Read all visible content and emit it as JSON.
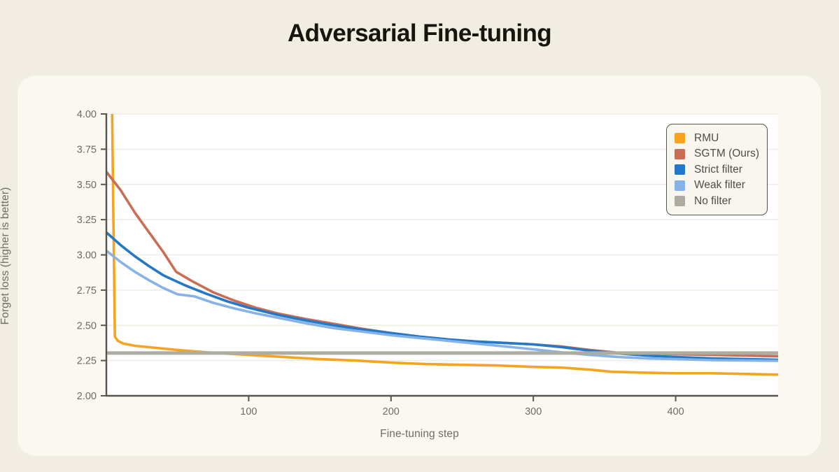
{
  "chart_data": {
    "type": "line",
    "title": "Adversarial Fine-tuning",
    "xlabel": "Fine-tuning step",
    "ylabel": "Forget loss (higher is better)",
    "xlim": [
      0,
      472
    ],
    "ylim": [
      2.0,
      4.0
    ],
    "grid": "horizontal-only",
    "legend_position": "upper-right",
    "x_ticks": [
      {
        "value": 100,
        "label": "100"
      },
      {
        "value": 200,
        "label": "200"
      },
      {
        "value": 300,
        "label": "300"
      },
      {
        "value": 400,
        "label": "400"
      }
    ],
    "y_ticks": [
      {
        "value": 2.0,
        "label": "2.00"
      },
      {
        "value": 2.25,
        "label": "2.25"
      },
      {
        "value": 2.5,
        "label": "2.50"
      },
      {
        "value": 2.75,
        "label": "2.75"
      },
      {
        "value": 3.0,
        "label": "3.00"
      },
      {
        "value": 3.25,
        "label": "3.25"
      },
      {
        "value": 3.5,
        "label": "3.50"
      },
      {
        "value": 3.75,
        "label": "3.75"
      },
      {
        "value": 4.0,
        "label": "4.00"
      }
    ],
    "series": [
      {
        "name": "RMU",
        "color": "#f6a41f",
        "width": 3.6,
        "x": [
          0,
          2,
          4,
          5,
          6,
          8,
          12,
          20,
          30,
          50,
          75,
          100,
          125,
          150,
          175,
          200,
          225,
          250,
          275,
          300,
          320,
          340,
          355,
          375,
          400,
          425,
          450,
          472
        ],
        "y": [
          4.05,
          4.05,
          4.05,
          3.2,
          2.42,
          2.39,
          2.37,
          2.355,
          2.345,
          2.325,
          2.305,
          2.29,
          2.275,
          2.26,
          2.25,
          2.235,
          2.225,
          2.22,
          2.215,
          2.205,
          2.2,
          2.185,
          2.17,
          2.165,
          2.16,
          2.16,
          2.155,
          2.15
        ]
      },
      {
        "name": "SGTM (Ours)",
        "color": "#c96d55",
        "width": 3.6,
        "x": [
          0,
          10,
          20,
          30,
          40,
          49,
          60,
          75,
          90,
          105,
          120,
          140,
          160,
          180,
          200,
          220,
          240,
          260,
          280,
          300,
          320,
          340,
          360,
          380,
          400,
          425,
          450,
          472
        ],
        "y": [
          3.59,
          3.46,
          3.3,
          3.16,
          3.02,
          2.88,
          2.815,
          2.735,
          2.675,
          2.625,
          2.585,
          2.545,
          2.51,
          2.475,
          2.445,
          2.42,
          2.4,
          2.385,
          2.375,
          2.365,
          2.35,
          2.325,
          2.305,
          2.3,
          2.295,
          2.29,
          2.285,
          2.28
        ]
      },
      {
        "name": "Strict filter",
        "color": "#2478c8",
        "width": 3.6,
        "x": [
          0,
          10,
          20,
          30,
          40,
          55,
          70,
          85,
          100,
          120,
          140,
          160,
          180,
          200,
          220,
          240,
          260,
          280,
          300,
          320,
          340,
          360,
          380,
          400,
          425,
          450,
          472
        ],
        "y": [
          3.16,
          3.07,
          2.99,
          2.92,
          2.855,
          2.785,
          2.725,
          2.67,
          2.625,
          2.575,
          2.535,
          2.5,
          2.47,
          2.445,
          2.42,
          2.4,
          2.385,
          2.375,
          2.365,
          2.345,
          2.32,
          2.3,
          2.285,
          2.275,
          2.265,
          2.26,
          2.255
        ]
      },
      {
        "name": "Weak filter",
        "color": "#85b3e8",
        "width": 3.6,
        "x": [
          0,
          10,
          20,
          30,
          40,
          50,
          62,
          75,
          90,
          105,
          120,
          140,
          160,
          180,
          200,
          220,
          240,
          260,
          280,
          300,
          320,
          340,
          360,
          380,
          400,
          425,
          450,
          472
        ],
        "y": [
          3.03,
          2.95,
          2.88,
          2.82,
          2.765,
          2.72,
          2.705,
          2.66,
          2.62,
          2.585,
          2.555,
          2.515,
          2.48,
          2.455,
          2.43,
          2.41,
          2.39,
          2.37,
          2.35,
          2.33,
          2.308,
          2.29,
          2.275,
          2.265,
          2.26,
          2.253,
          2.25,
          2.248
        ]
      },
      {
        "name": "No filter",
        "color": "#acaca0",
        "width": 5,
        "x": [
          0,
          472
        ],
        "y": [
          2.303,
          2.303
        ]
      }
    ],
    "colors": {
      "page_background": "#f1ede3",
      "panel_background": "#faf8f1",
      "plot_background": "#ffffff",
      "gridline": "#eeebe2",
      "axis": "#57564c",
      "tick_label": "#6e6d63",
      "legend_border": "#57564c",
      "legend_background": "#f8f6ee"
    }
  }
}
